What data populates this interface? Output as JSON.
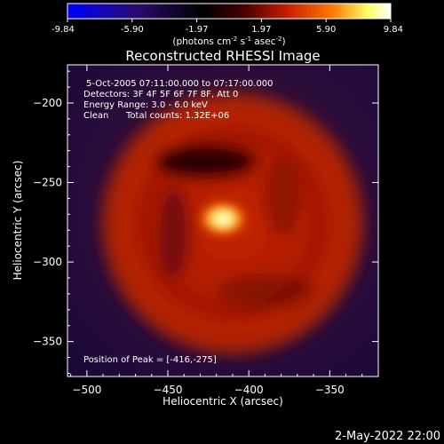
{
  "colorbar": {
    "tick_labels": [
      "-9.84",
      "-5.90",
      "-1.97",
      "1.97",
      "5.90",
      "9.84"
    ],
    "min": -9.84,
    "max": 9.84,
    "unit_label": {
      "prefix": "(photons cm",
      "exp1": "-2",
      "mid": " s",
      "exp2": "-1",
      "mid2": " asec",
      "exp3": "-2",
      "suffix": ")"
    },
    "colors": [
      "#0000ff",
      "#2a0a6a",
      "#000000",
      "#4a0000",
      "#c81e00",
      "#ff7a00",
      "#ffff66",
      "#ffffff"
    ]
  },
  "chart_data": {
    "type": "heatmap",
    "title": "Reconstructed RHESSI Image",
    "xlabel": "Heliocentric X (arcsec)",
    "ylabel": "Heliocentric Y (arcsec)",
    "xlim": [
      -512,
      -320
    ],
    "ylim": [
      -372,
      -176
    ],
    "x_ticks": [
      -500,
      -450,
      -400,
      -350
    ],
    "y_ticks": [
      -200,
      -250,
      -300,
      -350
    ],
    "x_tick_labels": [
      "−500",
      "−450",
      "−400",
      "−350"
    ],
    "y_tick_labels": [
      "−200",
      "−250",
      "−300",
      "−350"
    ],
    "peak": {
      "x": -416,
      "y": -275
    },
    "ring_center": {
      "x": -418,
      "y": -272
    },
    "annotations": {
      "time": "5-Oct-2005 07:11:00.000 to 07:17:00.000",
      "detectors": "Detectors: 3F 4F 5F 6F 7F 8F, Att 0",
      "energy": "Energy Range: 3.0 - 6.0 keV",
      "clean": "Clean",
      "counts": "Total counts: 1.32E+06",
      "peak": "Position of Peak = [-416,-275]"
    }
  },
  "footer": {
    "date": "2-May-2022 22:00"
  }
}
